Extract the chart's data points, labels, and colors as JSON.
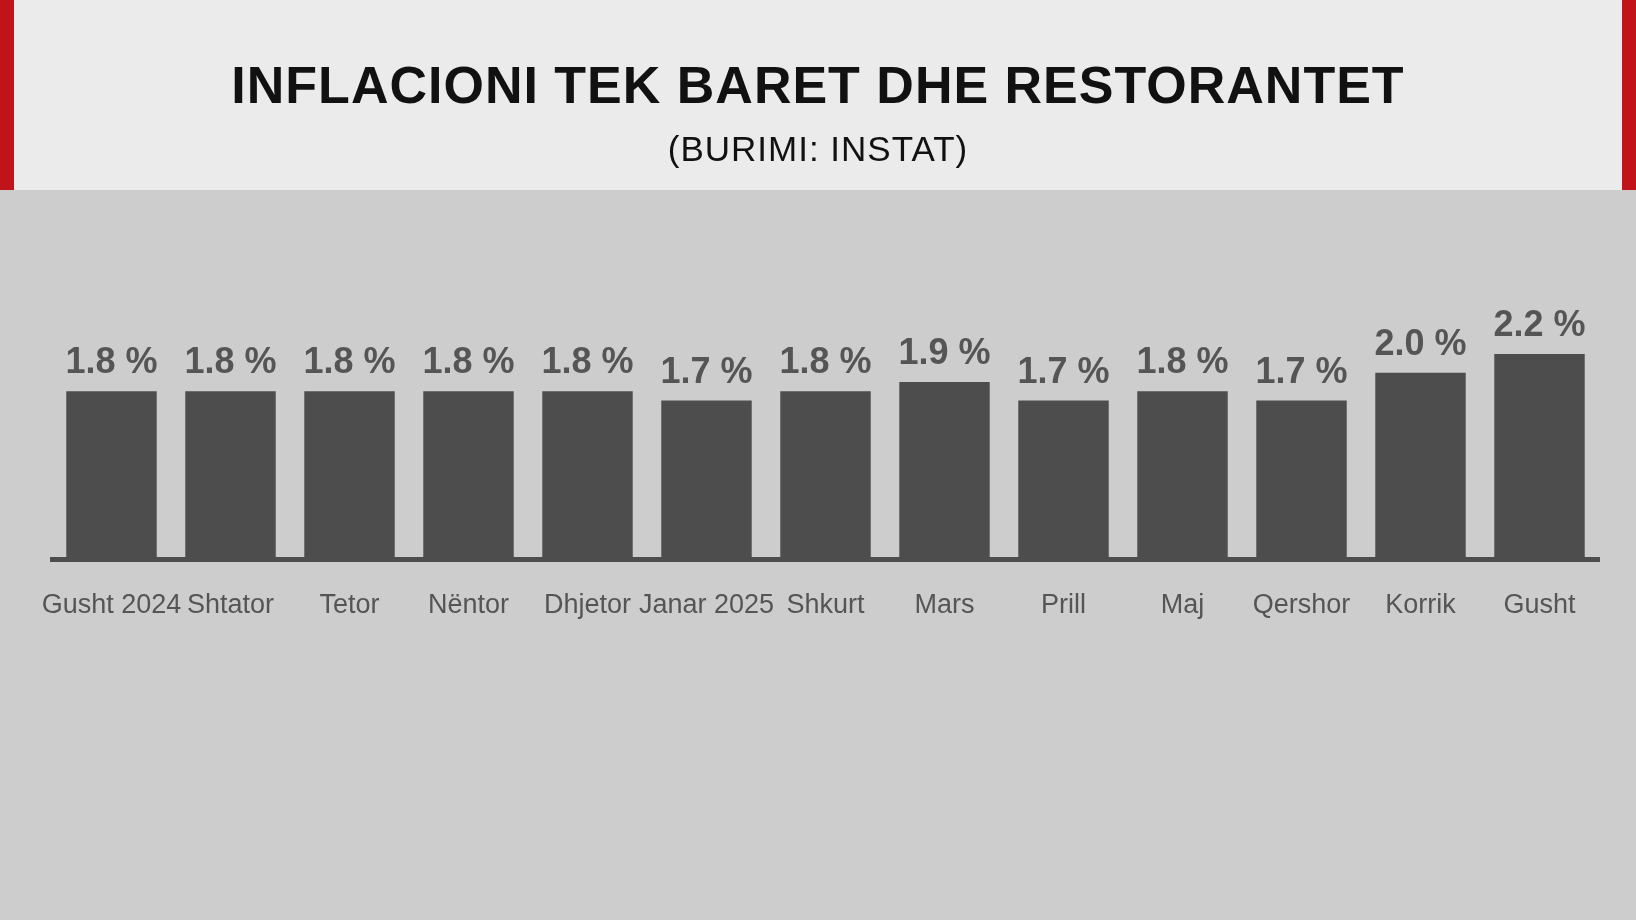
{
  "chart_data": {
    "type": "bar",
    "title": "INFLACIONI TEK BARET DHE RESTORANTET",
    "subtitle": "(BURIMI: INSTAT)",
    "categories": [
      "Gusht 2024",
      "Shtator",
      "Tetor",
      "Nëntor",
      "Dhjetor",
      "Janar 2025",
      "Shkurt",
      "Mars",
      "Prill",
      "Maj",
      "Qershor",
      "Korrik",
      "Gusht"
    ],
    "values": [
      1.8,
      1.8,
      1.8,
      1.8,
      1.8,
      1.7,
      1.8,
      1.9,
      1.7,
      1.8,
      1.7,
      2.0,
      2.2
    ],
    "value_labels": [
      "1.8 %",
      "1.8 %",
      "1.8 %",
      "1.8 %",
      "1.8 %",
      "1.7 %",
      "1.8 %",
      "1.9 %",
      "1.7 %",
      "1.8 %",
      "1.7 %",
      "2.0 %",
      "2.2 %"
    ],
    "color": "#4d4d4d",
    "tick_labels": "x"
  }
}
